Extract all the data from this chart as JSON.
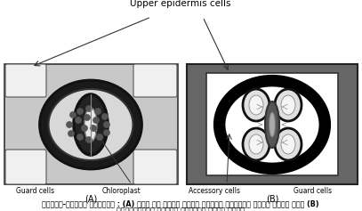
{
  "title_top": "Upper epidermis cells",
  "label_A": "(A)",
  "label_B": "(B)",
  "label_guard_cells_left": "Guard cells",
  "label_chloroplast": "Chloroplast",
  "label_accessory_cells": "Accessory cells",
  "label_guard_cells_right": "Guard cells",
  "caption_line1": "चित्र-रन्धी तन्त्र : (A) सेम के आकार वाली द्वार कोशिका सहित रन्ध तथा (B)",
  "caption_line2": "ࠡम्बलाकार द्वार कोशिका सहित रन्ध",
  "bg_color": "#ffffff"
}
